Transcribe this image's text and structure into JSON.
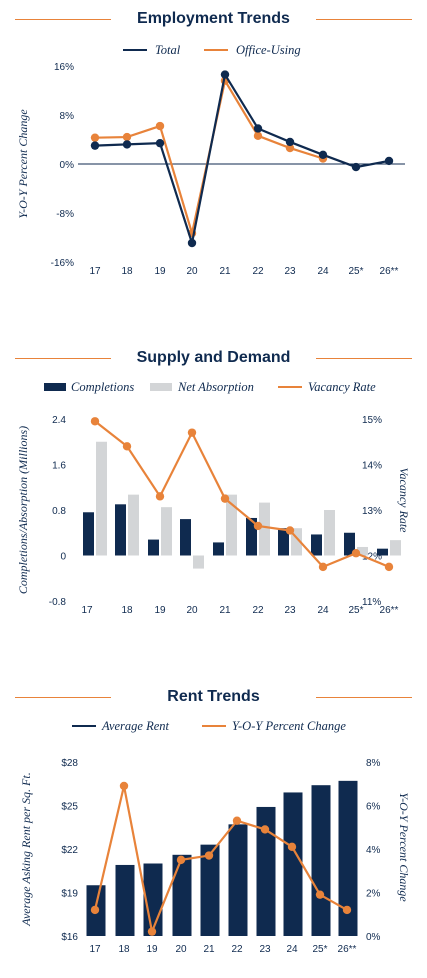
{
  "colors": {
    "navy": "#0f2a4f",
    "orange": "#e8833a",
    "gray": "#d3d5d7",
    "rule": "#e8833a"
  },
  "chart_data": [
    {
      "id": "employment",
      "type": "line",
      "title": "Employment Trends",
      "xlabel": "",
      "ylabel": "Y-O-Y Percent Change",
      "categories": [
        "17",
        "18",
        "19",
        "20",
        "21",
        "22",
        "23",
        "24",
        "25*",
        "26**"
      ],
      "y_ticks": [
        "16%",
        "8%",
        "0%",
        "-8%",
        "-16%"
      ],
      "ylim": [
        -16,
        16
      ],
      "grid": false,
      "legend": "top",
      "series": [
        {
          "name": "Total",
          "color": "#0f2a4f",
          "values": [
            3.0,
            3.2,
            3.4,
            -12.9,
            14.6,
            5.8,
            3.6,
            1.5,
            -0.5,
            0.5
          ]
        },
        {
          "name": "Office-Using",
          "color": "#e8833a",
          "values": [
            4.3,
            4.4,
            6.2,
            -11.3,
            13.6,
            4.6,
            2.6,
            0.9,
            null,
            null
          ]
        }
      ]
    },
    {
      "id": "supply",
      "type": "bar",
      "title": "Supply and Demand",
      "ylabel": "Completions/Absorption (Millions)",
      "y2label": "Vacancy Rate",
      "categories": [
        "17",
        "18",
        "19",
        "20",
        "21",
        "22",
        "23",
        "24",
        "25*",
        "26**"
      ],
      "y_ticks": [
        "2.4",
        "1.6",
        "0.8",
        "0",
        "-0.8"
      ],
      "y2_ticks": [
        "15%",
        "14%",
        "13%",
        "12%",
        "11%"
      ],
      "ylim": [
        -0.8,
        2.4
      ],
      "y2lim": [
        11,
        15
      ],
      "legend": "top",
      "series": [
        {
          "name": "Completions",
          "kind": "bar",
          "color": "#0f2a4f",
          "values": [
            0.76,
            0.9,
            0.28,
            0.64,
            0.23,
            0.66,
            0.48,
            0.37,
            0.4,
            0.12
          ]
        },
        {
          "name": "Net Absorption",
          "kind": "bar",
          "color": "#d3d5d7",
          "values": [
            2.0,
            1.07,
            0.85,
            -0.23,
            1.07,
            0.93,
            0.48,
            0.8,
            0.15,
            0.27
          ]
        },
        {
          "name": "Vacancy Rate",
          "kind": "line",
          "axis": "right",
          "color": "#e8833a",
          "values": [
            14.95,
            14.4,
            13.3,
            14.7,
            13.25,
            12.65,
            12.55,
            11.75,
            12.05,
            11.75
          ]
        }
      ]
    },
    {
      "id": "rent",
      "type": "bar",
      "title": "Rent Trends",
      "ylabel": "Average Asking Rent per Sq. Ft.",
      "y2label": "Y-O-Y Percent Change",
      "categories": [
        "17",
        "18",
        "19",
        "20",
        "21",
        "22",
        "23",
        "24",
        "25*",
        "26**"
      ],
      "y_ticks": [
        "$28",
        "$25",
        "$22",
        "$19",
        "$16"
      ],
      "y2_ticks": [
        "8%",
        "6%",
        "4%",
        "2%",
        "0%"
      ],
      "ylim": [
        16,
        28
      ],
      "y2lim": [
        0,
        8
      ],
      "legend": "top",
      "series": [
        {
          "name": "Average Rent",
          "kind": "bar",
          "color": "#0f2a4f",
          "values": [
            19.5,
            20.9,
            21.0,
            21.6,
            22.3,
            23.7,
            24.9,
            25.9,
            26.4,
            26.7
          ]
        },
        {
          "name": "Y-O-Y Percent Change",
          "kind": "line",
          "axis": "right",
          "color": "#e8833a",
          "values": [
            1.2,
            6.9,
            0.2,
            3.5,
            3.7,
            5.3,
            4.9,
            4.1,
            1.9,
            1.2
          ]
        }
      ]
    }
  ]
}
